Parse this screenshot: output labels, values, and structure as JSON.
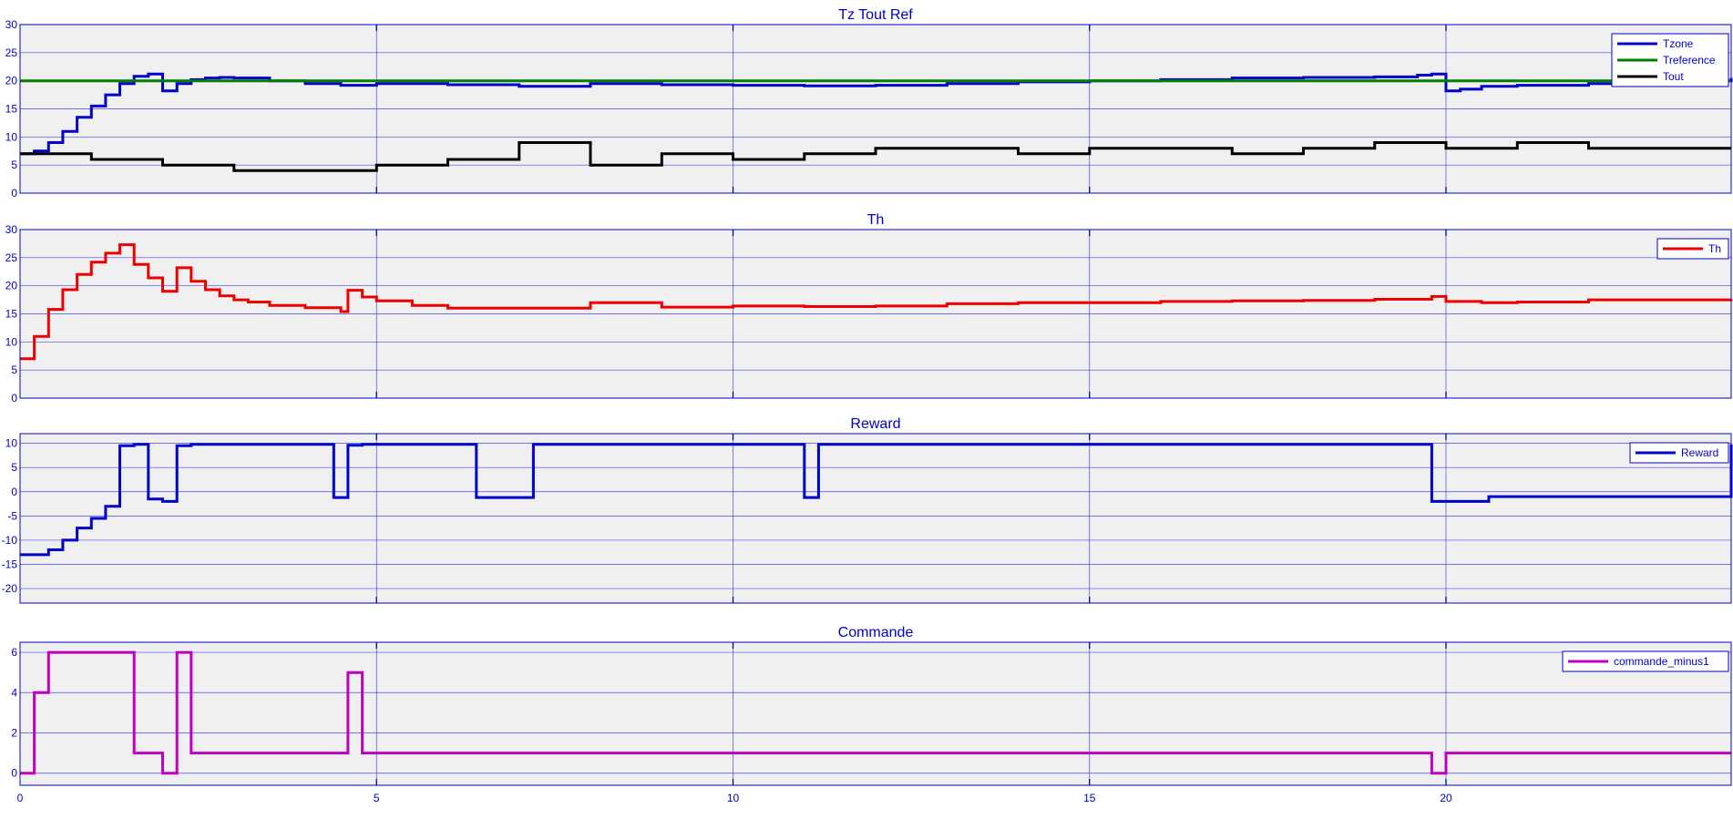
{
  "chart_data": [
    {
      "type": "line",
      "title": "Tz Tout Ref",
      "xlim": [
        0,
        24
      ],
      "ylim": [
        0,
        30
      ],
      "yticks": [
        0,
        5,
        10,
        15,
        20,
        25,
        30
      ],
      "grid": true,
      "legend_position": "top-right",
      "series": [
        {
          "name": "Tzone",
          "color": "#0000cc",
          "x": [
            0,
            0.2,
            0.4,
            0.6,
            0.8,
            1.0,
            1.2,
            1.4,
            1.6,
            1.8,
            2.0,
            2.2,
            2.4,
            2.6,
            2.8,
            3.0,
            3.5,
            4.0,
            4.5,
            5.0,
            6.0,
            7.0,
            8.0,
            9.0,
            10.0,
            11.0,
            12.0,
            13.0,
            14.0,
            15.0,
            16.0,
            17.0,
            18.0,
            19.0,
            19.6,
            19.8,
            20.0,
            20.2,
            20.5,
            21.0,
            22.0,
            23.0,
            24.0
          ],
          "y": [
            7,
            7.5,
            9,
            11,
            13.5,
            15.5,
            17.5,
            19.5,
            20.8,
            21.2,
            18.2,
            19.5,
            20.2,
            20.5,
            20.6,
            20.5,
            20,
            19.5,
            19.2,
            19.5,
            19.3,
            19,
            19.5,
            19.3,
            19.2,
            19.1,
            19.2,
            19.5,
            19.8,
            20,
            20.2,
            20.5,
            20.6,
            20.7,
            21,
            21.2,
            18.2,
            18.5,
            19,
            19.2,
            19.5,
            20,
            20.5
          ]
        },
        {
          "name": "Treference",
          "color": "#008000",
          "x": [
            0,
            24
          ],
          "y": [
            20,
            20
          ]
        },
        {
          "name": "Tout",
          "color": "#000000",
          "x": [
            0,
            1,
            2,
            3,
            4,
            5,
            6,
            7,
            8,
            9,
            10,
            11,
            12,
            13,
            14,
            15,
            16,
            17,
            18,
            19,
            20,
            21,
            22,
            23,
            24
          ],
          "y": [
            7,
            6,
            5,
            4,
            4,
            5,
            6,
            9,
            5,
            7,
            6,
            7,
            8,
            8,
            7,
            8,
            8,
            7,
            8,
            9,
            8,
            9,
            8,
            8,
            8
          ]
        }
      ]
    },
    {
      "type": "line",
      "title": "Th",
      "xlim": [
        0,
        24
      ],
      "ylim": [
        0,
        30
      ],
      "yticks": [
        0,
        5,
        10,
        15,
        20,
        25,
        30
      ],
      "grid": true,
      "legend_position": "top-right",
      "series": [
        {
          "name": "Th",
          "color": "#ee0000",
          "x": [
            0,
            0.2,
            0.4,
            0.6,
            0.8,
            1.0,
            1.2,
            1.4,
            1.6,
            1.8,
            2.0,
            2.2,
            2.4,
            2.6,
            2.8,
            3.0,
            3.2,
            3.5,
            4.0,
            4.5,
            4.6,
            4.8,
            5.0,
            5.5,
            6.0,
            7.0,
            8.0,
            9.0,
            10.0,
            11.0,
            12.0,
            13.0,
            14.0,
            15.0,
            16.0,
            17.0,
            18.0,
            19.0,
            19.8,
            20.0,
            20.5,
            21.0,
            22.0,
            23.0,
            24.0
          ],
          "y": [
            7,
            11,
            15.8,
            19.3,
            22,
            24.2,
            25.8,
            27.3,
            23.8,
            21.4,
            19,
            23.2,
            20.8,
            19.3,
            18.2,
            17.5,
            17.1,
            16.5,
            16.1,
            15.4,
            19.2,
            18,
            17.3,
            16.5,
            16,
            16,
            17,
            16.2,
            16.4,
            16.3,
            16.4,
            16.8,
            17,
            17,
            17.2,
            17.3,
            17.4,
            17.6,
            18.1,
            17.2,
            17,
            17.1,
            17.5,
            17.5,
            17.6
          ]
        }
      ]
    },
    {
      "type": "line",
      "title": "Reward",
      "xlim": [
        0,
        24
      ],
      "ylim": [
        -23,
        12
      ],
      "yticks": [
        -20,
        -15,
        -10,
        -5,
        0,
        5,
        10
      ],
      "grid": true,
      "legend_position": "top-right",
      "series": [
        {
          "name": "Reward",
          "color": "#0000cc",
          "x": [
            0,
            0.4,
            0.6,
            0.8,
            1.0,
            1.2,
            1.4,
            1.6,
            1.8,
            2.0,
            2.2,
            2.4,
            4.4,
            4.6,
            4.8,
            6.4,
            7.2,
            11.0,
            11.2,
            19.8,
            20.6,
            24.0
          ],
          "y": [
            -13,
            -12,
            -10,
            -7.5,
            -5.5,
            -3,
            9.5,
            9.8,
            -1.5,
            -2,
            9.5,
            9.8,
            -1.2,
            9.6,
            9.8,
            -1.2,
            9.8,
            -1.2,
            9.8,
            -2,
            -1,
            9.8
          ]
        }
      ]
    },
    {
      "type": "line",
      "title": "Commande",
      "xlim": [
        0,
        24
      ],
      "ylim": [
        -0.6,
        6.5
      ],
      "yticks": [
        0,
        2,
        4,
        6
      ],
      "xticks": [
        0,
        5,
        10,
        15,
        20
      ],
      "grid": true,
      "legend_position": "top-right",
      "series": [
        {
          "name": "commande_minus1",
          "color": "#c000c0",
          "x": [
            0,
            0.2,
            0.4,
            1.6,
            2.0,
            2.2,
            2.4,
            4.6,
            4.8,
            19.8,
            20.0,
            24.0
          ],
          "y": [
            0,
            4,
            6,
            1,
            0,
            6,
            1,
            5,
            1,
            0,
            1,
            1
          ]
        }
      ]
    }
  ]
}
